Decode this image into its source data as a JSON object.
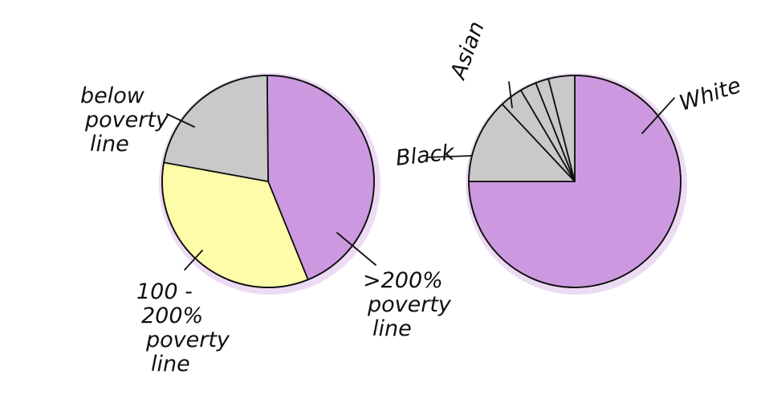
{
  "chart_data": [
    {
      "type": "pie",
      "title": "",
      "slices": [
        {
          "label": ">200% poverty line",
          "value": 44,
          "color": "#cc99e0"
        },
        {
          "label": "100-200% poverty line",
          "value": 34,
          "color": "#fdfca8"
        },
        {
          "label": "below poverty line",
          "value": 22,
          "color": "#c9c9c9"
        }
      ],
      "annotations": [
        {
          "lines": [
            ">200%",
            "poverty",
            "line"
          ],
          "slice": 0
        },
        {
          "lines": [
            "100 -",
            "200%",
            "poverty",
            "line"
          ],
          "slice": 1
        },
        {
          "lines": [
            "below",
            "poverty",
            "line"
          ],
          "slice": 2
        }
      ]
    },
    {
      "type": "pie",
      "title": "",
      "slices": [
        {
          "label": "White",
          "value": 75,
          "color": "#cc99e0"
        },
        {
          "label": "Black",
          "value": 13,
          "color": "#c9c9c9"
        },
        {
          "label": "",
          "value": 3.5,
          "color": "#c9c9c9"
        },
        {
          "label": "Asian",
          "value": 2.5,
          "color": "#c9c9c9"
        },
        {
          "label": "",
          "value": 2,
          "color": "#c9c9c9"
        },
        {
          "label": "",
          "value": 4,
          "color": "#c9c9c9"
        }
      ],
      "annotations": [
        {
          "lines": [
            "White"
          ],
          "slice": 0
        },
        {
          "lines": [
            "Black"
          ],
          "slice": 1
        },
        {
          "lines": [
            "Asian"
          ],
          "slice": 3
        }
      ]
    }
  ]
}
